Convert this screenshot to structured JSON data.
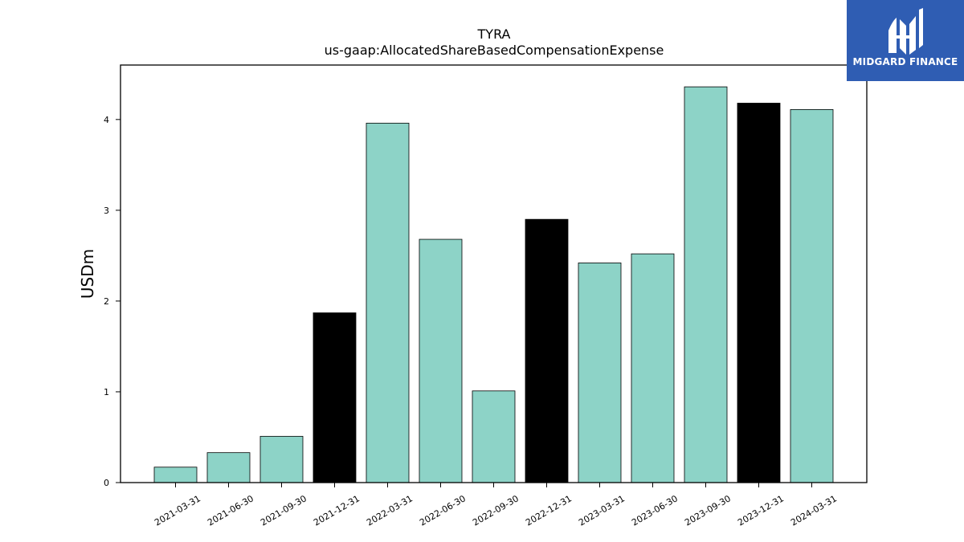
{
  "brand": {
    "name": "MIDGARD FINANCE",
    "color": "#2f5db3"
  },
  "chart_data": {
    "type": "bar",
    "title": "TYRA",
    "subtitle": "us-gaap:AllocatedShareBasedCompensationExpense",
    "xlabel": "",
    "ylabel": "USDm",
    "ylim": [
      0,
      4.6
    ],
    "yticks": [
      "0",
      "1",
      "2",
      "3",
      "4"
    ],
    "grid": false,
    "categories": [
      "2021-03-31",
      "2021-06-30",
      "2021-09-30",
      "2021-12-31",
      "2022-03-31",
      "2022-06-30",
      "2022-09-30",
      "2022-12-31",
      "2023-03-31",
      "2023-06-30",
      "2023-09-30",
      "2023-12-31",
      "2024-03-31"
    ],
    "values": [
      0.17,
      0.33,
      0.51,
      1.87,
      3.96,
      2.68,
      1.01,
      2.9,
      2.42,
      2.52,
      4.36,
      4.18,
      4.11
    ],
    "bar_colors": [
      "#8dd3c7",
      "#8dd3c7",
      "#8dd3c7",
      "#000000",
      "#8dd3c7",
      "#8dd3c7",
      "#8dd3c7",
      "#000000",
      "#8dd3c7",
      "#8dd3c7",
      "#8dd3c7",
      "#000000",
      "#8dd3c7"
    ]
  }
}
